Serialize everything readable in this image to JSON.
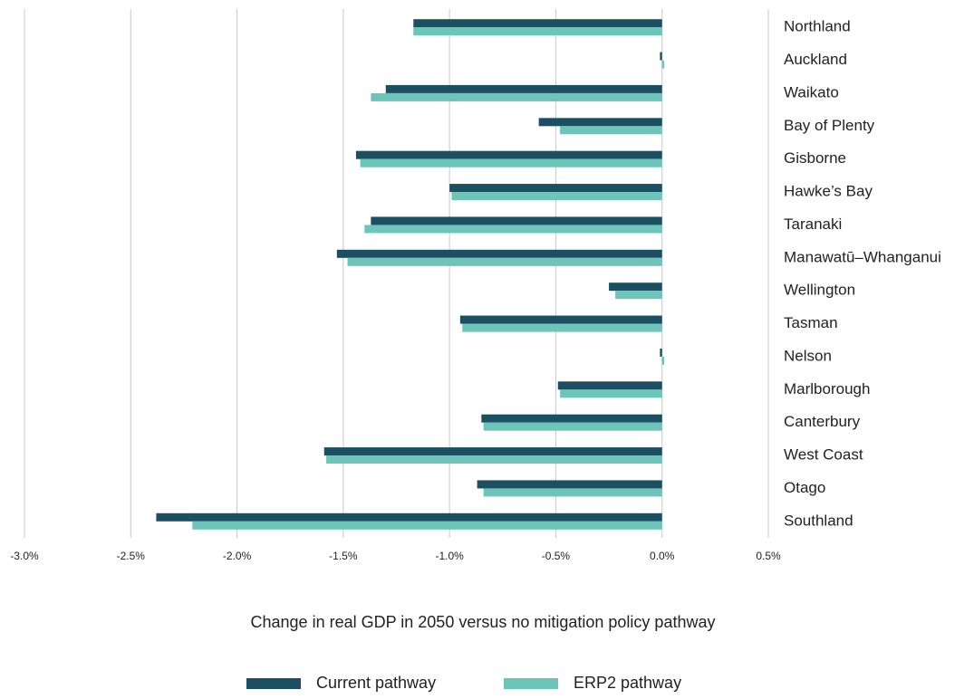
{
  "chart_data": {
    "type": "barh",
    "xlabel": "Change in real GDP in 2050 versus no mitigation policy pathway",
    "categories": [
      "Northland",
      "Auckland",
      "Waikato",
      "Bay of Plenty",
      "Gisborne",
      "Hawke’s Bay",
      "Taranaki",
      "Manawatū–Whanganui",
      "Wellington",
      "Tasman",
      "Nelson",
      "Marlborough",
      "Canterbury",
      "West Coast",
      "Otago",
      "Southland"
    ],
    "series": [
      {
        "name": "Current pathway",
        "color": "#1d4f63",
        "values": [
          -1.17,
          -0.01,
          -1.3,
          -0.58,
          -1.44,
          -1.0,
          -1.37,
          -1.53,
          -0.25,
          -0.95,
          -0.01,
          -0.49,
          -0.85,
          -1.59,
          -0.87,
          -2.38
        ]
      },
      {
        "name": "ERP2 pathway",
        "color": "#6cc5b8",
        "values": [
          -1.17,
          0.01,
          -1.37,
          -0.48,
          -1.42,
          -0.99,
          -1.4,
          -1.48,
          -0.22,
          -0.94,
          0.01,
          -0.48,
          -0.84,
          -1.58,
          -0.84,
          -2.21
        ]
      }
    ],
    "xlim": [
      -3.0,
      0.5
    ],
    "xticks": [
      {
        "value": -3.0,
        "label": "-3.0%"
      },
      {
        "value": -2.5,
        "label": "-2.5%"
      },
      {
        "value": -2.0,
        "label": "-2.0%"
      },
      {
        "value": -1.5,
        "label": "-1.5%"
      },
      {
        "value": -1.0,
        "label": "-1.0%"
      },
      {
        "value": -0.5,
        "label": "-0.5%"
      },
      {
        "value": 0.0,
        "label": "0.0%"
      },
      {
        "value": 0.5,
        "label": "0.5%"
      }
    ],
    "grid": true
  }
}
